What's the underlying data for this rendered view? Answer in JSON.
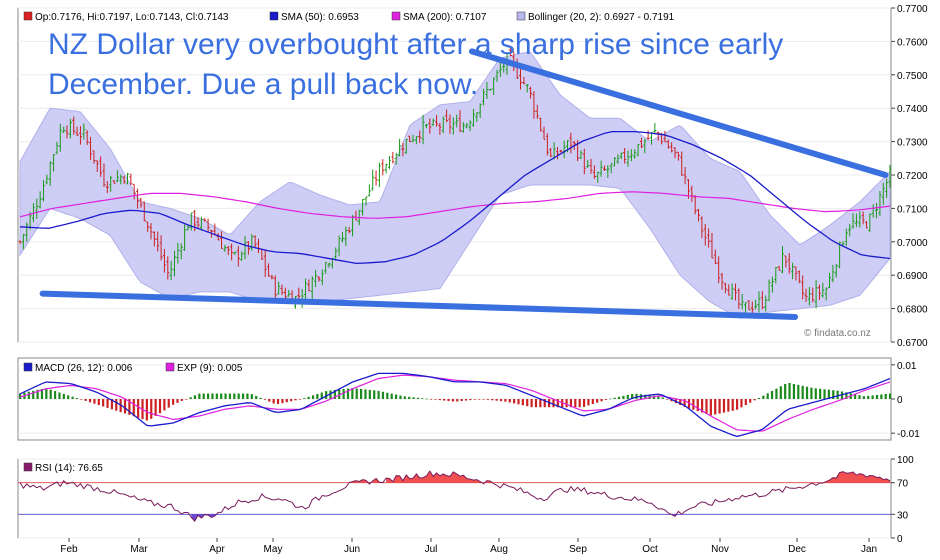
{
  "chart_data": [
    {
      "type": "candlestick",
      "name": "price",
      "legend": [
        {
          "label": "Op:0.7176, Hi:0.7197, Lo:0.7143, Cl:0.7143",
          "color": "#e02020"
        },
        {
          "label": "SMA (50): 0.6953",
          "color": "#1a1acc"
        },
        {
          "label": "SMA (200): 0.7107",
          "color": "#e020e0"
        },
        {
          "label": "Bollinger (20, 2): 0.6927 - 0.7191",
          "color": "#b8b8f0"
        }
      ],
      "annotation_lines": [
        "NZ Dollar very overbought after a sharp rise since early",
        "December. Due a pull back now."
      ],
      "watermark": "© findata.co.nz",
      "yticks": [
        "0.7700",
        "0.7600",
        "0.7500",
        "0.7400",
        "0.7300",
        "0.7200",
        "0.7100",
        "0.7000",
        "0.6900",
        "0.6800",
        "0.6700"
      ],
      "ylim": [
        0.67,
        0.77
      ],
      "close_path": [
        0.7,
        0.715,
        0.735,
        0.732,
        0.718,
        0.72,
        0.706,
        0.69,
        0.707,
        0.704,
        0.695,
        0.7,
        0.686,
        0.683,
        0.69,
        0.699,
        0.71,
        0.722,
        0.729,
        0.734,
        0.735,
        0.735,
        0.745,
        0.755,
        0.745,
        0.725,
        0.73,
        0.719,
        0.723,
        0.728,
        0.733,
        0.725,
        0.706,
        0.69,
        0.68,
        0.682,
        0.696,
        0.683,
        0.686,
        0.705,
        0.706,
        0.72
      ],
      "sma50_path": [
        0.7045,
        0.704,
        0.706,
        0.7085,
        0.7095,
        0.7085,
        0.705,
        0.702,
        0.699,
        0.697,
        0.6965,
        0.695,
        0.6935,
        0.694,
        0.696,
        0.7,
        0.706,
        0.713,
        0.72,
        0.725,
        0.73,
        0.733,
        0.733,
        0.732,
        0.729,
        0.725,
        0.72,
        0.713,
        0.706,
        0.7,
        0.696,
        0.695
      ],
      "sma200_path": [
        0.7075,
        0.71,
        0.7115,
        0.713,
        0.7145,
        0.7145,
        0.7135,
        0.712,
        0.71,
        0.7085,
        0.7075,
        0.707,
        0.7075,
        0.709,
        0.7105,
        0.7115,
        0.712,
        0.713,
        0.7145,
        0.715,
        0.7145,
        0.7135,
        0.713,
        0.7115,
        0.71,
        0.709,
        0.7095,
        0.7107
      ],
      "bollinger_upper_path": [
        0.724,
        0.74,
        0.739,
        0.728,
        0.712,
        0.71,
        0.707,
        0.702,
        0.712,
        0.718,
        0.714,
        0.711,
        0.712,
        0.735,
        0.741,
        0.742,
        0.755,
        0.757,
        0.744,
        0.737,
        0.737,
        0.73,
        0.735,
        0.725,
        0.721,
        0.708,
        0.699,
        0.705,
        0.712,
        0.721
      ],
      "bollinger_lower_path": [
        0.696,
        0.71,
        0.707,
        0.702,
        0.688,
        0.683,
        0.685,
        0.685,
        0.682,
        0.682,
        0.682,
        0.683,
        0.684,
        0.685,
        0.686,
        0.7,
        0.714,
        0.717,
        0.717,
        0.717,
        0.716,
        0.704,
        0.69,
        0.682,
        0.677,
        0.679,
        0.68,
        0.681,
        0.684,
        0.695
      ],
      "trendlines": [
        {
          "from": [
            "2015-07-28",
            0.757
          ],
          "to": [
            "2016-01-27",
            0.72
          ]
        },
        {
          "from": [
            "2015-01-19",
            0.6845
          ],
          "to": [
            "2015-12-18",
            0.6775
          ]
        }
      ]
    },
    {
      "type": "macd",
      "name": "macd",
      "legend": [
        {
          "label": "MACD (26, 12): 0.006",
          "color": "#1a1acc"
        },
        {
          "label": "EXP (9): 0.005",
          "color": "#e020e0"
        }
      ],
      "yticks": [
        "0.01",
        "0",
        "-0.01"
      ],
      "ylim": [
        -0.012,
        0.012
      ],
      "macd_path": [
        0.0015,
        0.005,
        0.0045,
        0.002,
        -0.002,
        -0.008,
        -0.007,
        -0.004,
        -0.002,
        -0.001,
        -0.004,
        -0.003,
        0.001,
        0.005,
        0.0075,
        0.0075,
        0.0065,
        0.005,
        0.005,
        0.004,
        0.001,
        -0.002,
        -0.005,
        -0.003,
        0.0005,
        0.0015,
        -0.002,
        -0.008,
        -0.011,
        -0.009,
        -0.003,
        -0.001,
        0.001,
        0.003,
        0.006
      ],
      "signal_path": [
        0.0005,
        0.003,
        0.004,
        0.003,
        0.0005,
        -0.004,
        -0.006,
        -0.005,
        -0.003,
        -0.002,
        -0.003,
        -0.003,
        -0.0005,
        0.003,
        0.006,
        0.007,
        0.0065,
        0.0055,
        0.005,
        0.0045,
        0.0025,
        -0.0005,
        -0.0035,
        -0.003,
        -0.0005,
        0.001,
        -0.0005,
        -0.005,
        -0.009,
        -0.0095,
        -0.006,
        -0.003,
        -0.0005,
        0.0025,
        0.005
      ]
    },
    {
      "type": "rsi",
      "name": "rsi",
      "legend": [
        {
          "label": "RSI (14): 76.65",
          "color": "#8a1a6a"
        }
      ],
      "yticks": [
        "100",
        "70",
        "30",
        "0"
      ],
      "ylim": [
        0,
        100
      ],
      "levels": [
        70,
        30
      ],
      "rsi_path": [
        68,
        62,
        70,
        66,
        60,
        52,
        44,
        40,
        25,
        30,
        45,
        52,
        50,
        38,
        55,
        66,
        72,
        74,
        78,
        82,
        80,
        74,
        68,
        60,
        50,
        62,
        60,
        54,
        50,
        46,
        28,
        40,
        45,
        52,
        55,
        60,
        66,
        72,
        82,
        80,
        74
      ]
    }
  ],
  "xaxis_labels": [
    "Feb",
    "Mar",
    "Apr",
    "May",
    "Jun",
    "Jul",
    "Aug",
    "Sep",
    "Oct",
    "Nov",
    "Dec",
    "Jan"
  ],
  "colors": {
    "up_candle": "#1a9a1a",
    "down_candle": "#cc2020",
    "sma50": "#1a1acc",
    "sma200": "#e020e0",
    "bollinger_fill": "#c8c8f4",
    "bollinger_edge": "#a8a8e8",
    "trendline": "#3a6fe0",
    "hist_up": "#1a8a1a",
    "hist_down": "#cc2020",
    "rsi_line": "#7a1a5a",
    "rsi_over": "#f05050",
    "rsi_under": "#6a4ad0"
  }
}
